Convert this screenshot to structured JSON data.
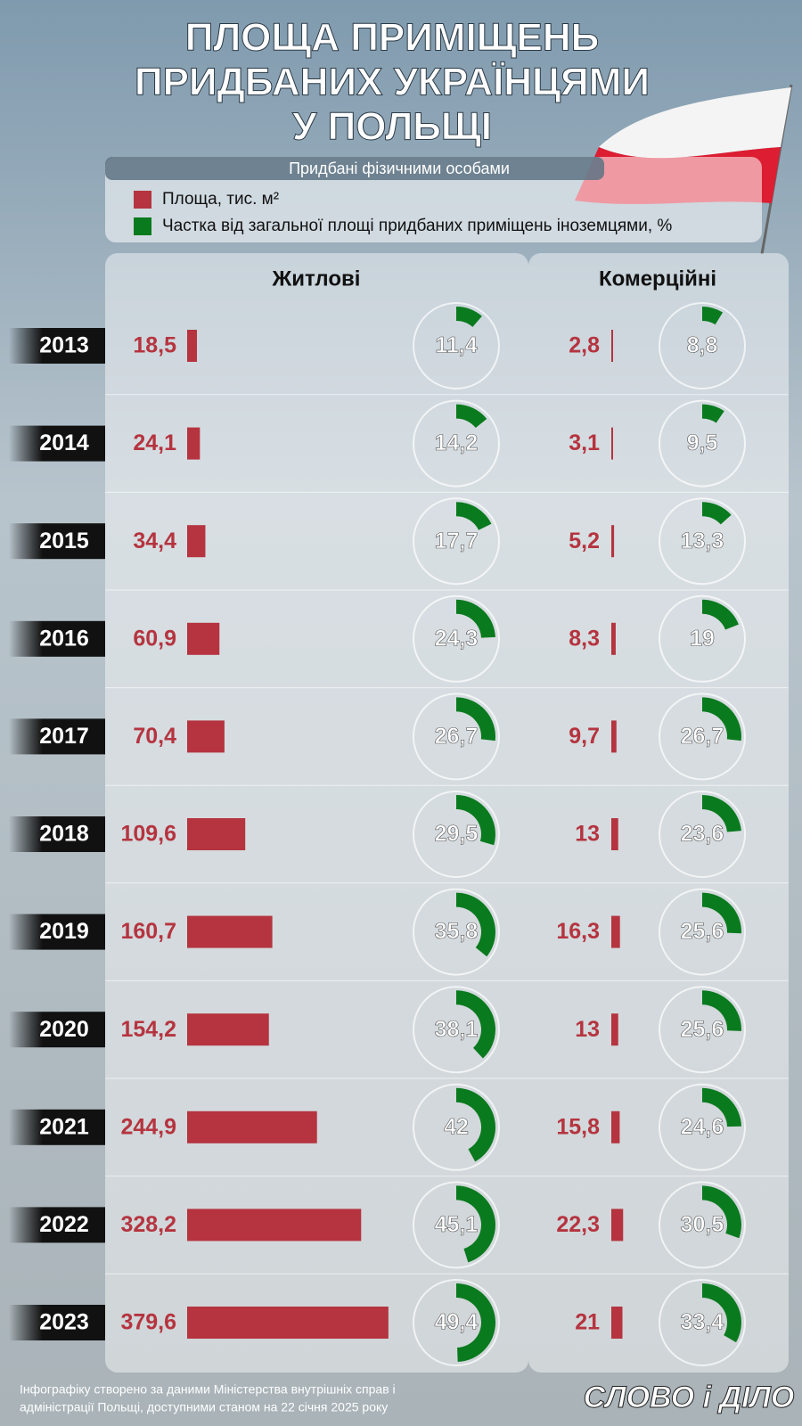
{
  "chart_data": {
    "type": "bar-donut",
    "title": [
      "ПЛОЩА ПРИМІЩЕНЬ",
      "ПРИДБАНИХ УКРАЇНЦЯМИ",
      "У ПОЛЬЩІ"
    ],
    "subtitle": "Придбані фізичними особами",
    "legend": [
      {
        "name": "Площа, тис. м²",
        "color": "#b5343f"
      },
      {
        "name": "Частка від загальної площі придбаних приміщень іноземцями, %",
        "color": "#0a7a1e"
      }
    ],
    "categories": [
      "2013",
      "2014",
      "2015",
      "2016",
      "2017",
      "2018",
      "2019",
      "2020",
      "2021",
      "2022",
      "2023"
    ],
    "panels": [
      {
        "title": "Житлові",
        "area": {
          "values": [
            18.5,
            24.1,
            34.4,
            60.9,
            70.4,
            109.6,
            160.7,
            154.2,
            244.9,
            328.2,
            379.6
          ],
          "value_labels": [
            "18,5",
            "24,1",
            "34,4",
            "60,9",
            "70,4",
            "109,6",
            "160,7",
            "154,2",
            "244,9",
            "328,2",
            "379,6"
          ]
        },
        "share": {
          "values": [
            11.4,
            14.2,
            17.7,
            24.3,
            26.7,
            29.5,
            35.8,
            38.1,
            42,
            45.1,
            49.4
          ],
          "value_labels": [
            "11,4",
            "14,2",
            "17,7",
            "24,3",
            "26,7",
            "29,5",
            "35,8",
            "38,1",
            "42",
            "45,1",
            "49,4"
          ]
        }
      },
      {
        "title": "Комерційні",
        "area": {
          "values": [
            2.8,
            3.1,
            5.2,
            8.3,
            9.7,
            13,
            16.3,
            13,
            15.8,
            22.3,
            21
          ],
          "value_labels": [
            "2,8",
            "3,1",
            "5,2",
            "8,3",
            "9,7",
            "13",
            "16,3",
            "13",
            "15,8",
            "22,3",
            "21"
          ]
        },
        "share": {
          "values": [
            8.8,
            9.5,
            13.3,
            19,
            26.7,
            23.6,
            25.6,
            25.6,
            24.6,
            30.5,
            33.4
          ],
          "value_labels": [
            "8,8",
            "9,5",
            "13,3",
            "19",
            "26,7",
            "23,6",
            "25,6",
            "25,6",
            "24,6",
            "30,5",
            "33,4"
          ]
        }
      }
    ],
    "source": [
      "Інфографіку створено за даними Міністерства внутрішніх справ і",
      "адміністрації Польщі, доступними станом на 22 січня 2025 року"
    ],
    "logo": "СЛОВО і ДІЛО"
  }
}
